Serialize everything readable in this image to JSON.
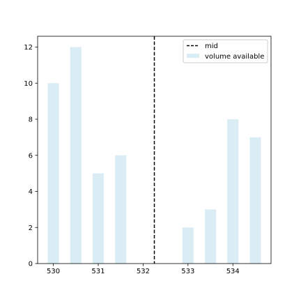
{
  "chart_data": {
    "type": "bar",
    "x": [
      530,
      530.5,
      531,
      531.5,
      533,
      533.5,
      534,
      534.5
    ],
    "series": [
      {
        "name": "volume available",
        "values": [
          10,
          12,
          5,
          6,
          2,
          3,
          8,
          7
        ],
        "color": "#add8e6",
        "opacity": 0.45
      }
    ],
    "reference_lines": [
      {
        "name": "mid",
        "x": 532.25,
        "style": "dashed",
        "color": "#000000"
      }
    ],
    "xlim": [
      529.65,
      534.85
    ],
    "ylim": [
      0,
      12.6
    ],
    "xticks": [
      530,
      531,
      532,
      533,
      534
    ],
    "yticks": [
      0,
      2,
      4,
      6,
      8,
      10,
      12
    ],
    "legend": {
      "position": "top-right",
      "entries": [
        {
          "label": "mid",
          "kind": "dashed-line"
        },
        {
          "label": "volume available",
          "kind": "patch"
        }
      ]
    },
    "title": "",
    "xlabel": "",
    "ylabel": "",
    "grid": false
  }
}
